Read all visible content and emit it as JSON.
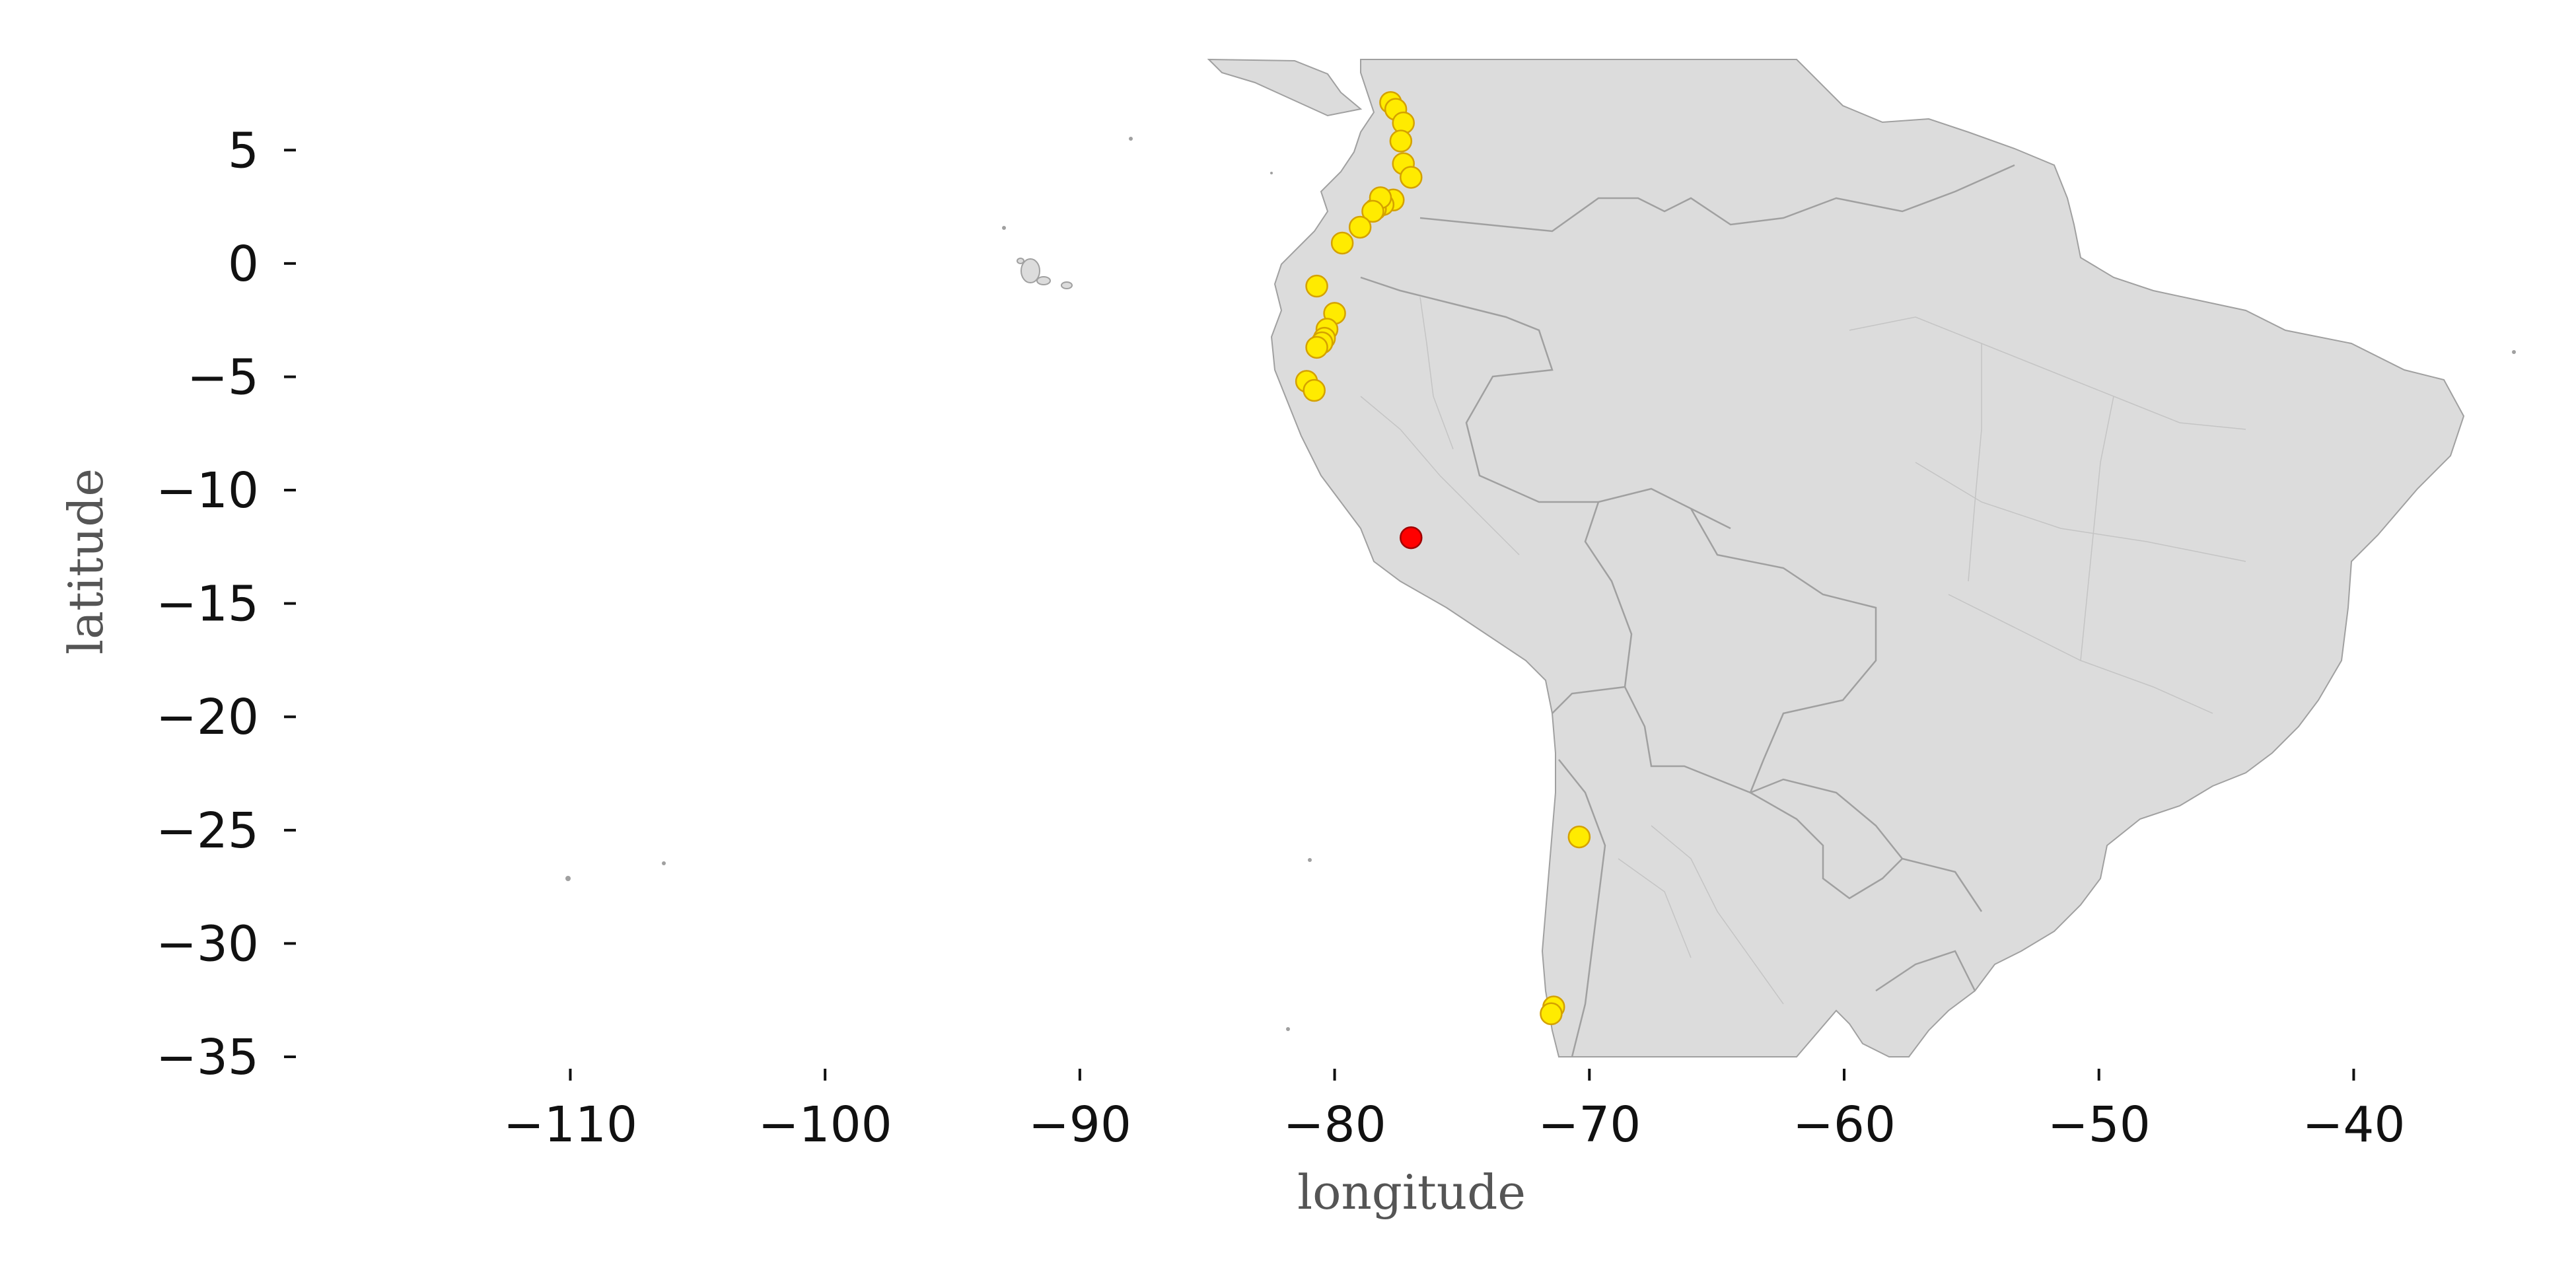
{
  "xlabel": "longitude",
  "ylabel": "latitude",
  "x_ticks": [
    -110,
    -100,
    -90,
    -80,
    -70,
    -60,
    -50,
    -40
  ],
  "y_ticks": [
    5,
    0,
    -5,
    -10,
    -15,
    -20,
    -25,
    -30,
    -35
  ],
  "xlim": [
    -120.2,
    -32.7
  ],
  "ylim": [
    -35,
    9
  ],
  "colors": {
    "land": "#dcdcdc",
    "border": "#a0a0a0",
    "point_yellow": "#ffeb00",
    "point_yellow_edge": "#d4a100",
    "point_red": "#ff0000",
    "point_red_edge": "#a00000"
  },
  "chart_data": {
    "type": "scatter",
    "xlabel": "longitude",
    "ylabel": "latitude",
    "xlim": [
      -120.2,
      -32.7
    ],
    "ylim": [
      -35,
      9
    ],
    "grid": false,
    "series": [
      {
        "color": "#ffeb00",
        "points": [
          {
            "lon": -77.8,
            "lat": 7.1
          },
          {
            "lon": -77.6,
            "lat": 6.8
          },
          {
            "lon": -77.3,
            "lat": 6.2
          },
          {
            "lon": -77.4,
            "lat": 5.4
          },
          {
            "lon": -77.3,
            "lat": 4.4
          },
          {
            "lon": -77.0,
            "lat": 3.8
          },
          {
            "lon": -77.7,
            "lat": 2.8
          },
          {
            "lon": -78.1,
            "lat": 2.6
          },
          {
            "lon": -78.4,
            "lat": 2.4
          },
          {
            "lon": -78.2,
            "lat": 2.9
          },
          {
            "lon": -78.5,
            "lat": 2.3
          },
          {
            "lon": -79.0,
            "lat": 1.6
          },
          {
            "lon": -79.7,
            "lat": 0.9
          },
          {
            "lon": -80.7,
            "lat": -1.0
          },
          {
            "lon": -80.0,
            "lat": -2.2
          },
          {
            "lon": -80.3,
            "lat": -2.9
          },
          {
            "lon": -80.4,
            "lat": -3.3
          },
          {
            "lon": -80.5,
            "lat": -3.5
          },
          {
            "lon": -80.7,
            "lat": -3.7
          },
          {
            "lon": -81.1,
            "lat": -5.2
          },
          {
            "lon": -80.8,
            "lat": -5.6
          },
          {
            "lon": -70.4,
            "lat": -25.3
          },
          {
            "lon": -71.4,
            "lat": -32.8
          },
          {
            "lon": -71.5,
            "lat": -33.1
          }
        ]
      },
      {
        "color": "#ff0000",
        "points": [
          {
            "lon": -77.0,
            "lat": -12.1
          }
        ]
      }
    ]
  }
}
